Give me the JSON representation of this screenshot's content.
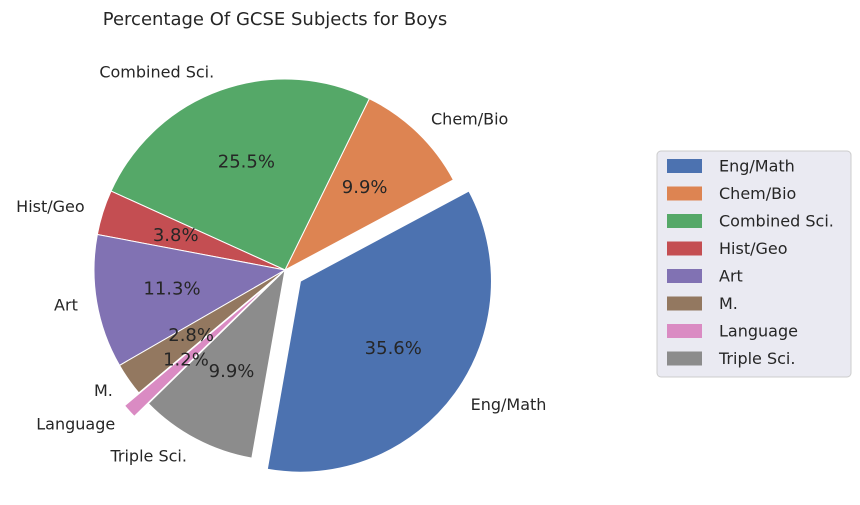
{
  "chart_data": {
    "type": "pie",
    "title": "Percentage Of  GCSE Subjects for Boys",
    "start_angle_deg": 260,
    "direction": "counterclockwise",
    "legend_position": "right",
    "slices": [
      {
        "label": "Eng/Math",
        "value": 35.6,
        "pct_text": "35.6%",
        "color": "#4C72B0",
        "exploded": true
      },
      {
        "label": "Chem/Bio",
        "value": 9.9,
        "pct_text": "9.9%",
        "color": "#DD8452",
        "exploded": false
      },
      {
        "label": "Combined Sci.",
        "value": 25.5,
        "pct_text": "25.5%",
        "color": "#55A868",
        "exploded": false
      },
      {
        "label": "Hist/Geo",
        "value": 3.8,
        "pct_text": "3.8%",
        "color": "#C44E52",
        "exploded": false
      },
      {
        "label": "Art",
        "value": 11.3,
        "pct_text": "11.3%",
        "color": "#8172B3",
        "exploded": false
      },
      {
        "label": "M.",
        "value": 2.8,
        "pct_text": "2.8%",
        "color": "#937860",
        "exploded": false
      },
      {
        "label": "Language",
        "value": 1.2,
        "pct_text": "1.2%",
        "color": "#DA8BC3",
        "exploded": true
      },
      {
        "label": "Triple Sci.",
        "value": 9.9,
        "pct_text": "9.9%",
        "color": "#8C8C8C",
        "exploded": false
      }
    ]
  }
}
